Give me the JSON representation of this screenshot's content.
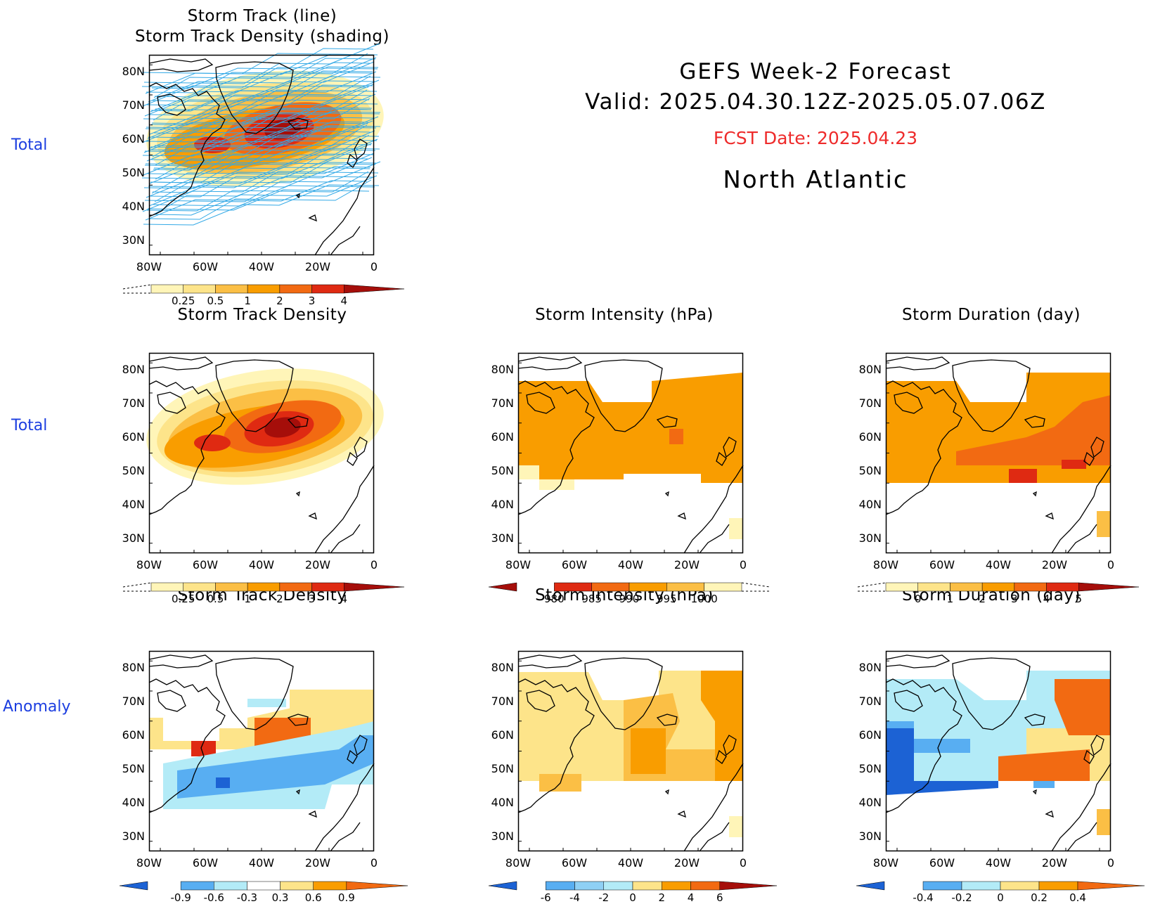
{
  "header": {
    "line1": "GEFS Week-2 Forecast",
    "line2": "Valid: 2025.04.30.12Z-2025.05.07.06Z",
    "fcst_date": "FCST Date: 2025.04.23",
    "region": "North Atlantic"
  },
  "row_labels": {
    "r1": "Total",
    "r2": "Total",
    "r3": "Anomaly"
  },
  "axes": {
    "lat_labels": [
      "80N",
      "70N",
      "60N",
      "50N",
      "40N",
      "30N"
    ],
    "lon_labels": [
      "80W",
      "60W",
      "40W",
      "20W",
      "0"
    ]
  },
  "panels": {
    "p1": {
      "title1": "Storm Track (line)",
      "title2": "Storm Track Density (shading)"
    },
    "p2": {
      "title": "Storm Track Density"
    },
    "p3": {
      "title": "Storm Intensity (hPa)"
    },
    "p4": {
      "title": "Storm Duration (day)"
    },
    "p5": {
      "title": "Storm Track Density"
    },
    "p6": {
      "title": "Storm Intensity (hPa)"
    },
    "p7": {
      "title": "Storm Duration (day)"
    }
  },
  "colorbars": {
    "density": [
      "0.25",
      "0.5",
      "1",
      "2",
      "3",
      "4"
    ],
    "intensity": [
      "980",
      "985",
      "990",
      "995",
      "1000"
    ],
    "duration": [
      "0",
      "1",
      "2",
      "3",
      "4",
      "5"
    ],
    "density_anom": [
      "-0.9",
      "-0.6",
      "-0.3",
      "0.3",
      "0.6",
      "0.9"
    ],
    "intensity_anom": [
      "-6",
      "-4",
      "-2",
      "0",
      "2",
      "4",
      "6"
    ],
    "duration_anom": [
      "-0.4",
      "-0.2",
      "0",
      "0.2",
      "0.4"
    ]
  },
  "colors": {
    "yellow_light": "#fff5b8",
    "yellow": "#fde48a",
    "orange_light": "#fbbf45",
    "orange": "#f99d00",
    "orange_red": "#f26a12",
    "red": "#df2a12",
    "dark_red": "#a50e0a",
    "blue_light": "#b3ebf7",
    "blue": "#58aef2",
    "blue_dark": "#1c62d4",
    "track_line": "#33a9e6",
    "label_blue": "#1c3ee0",
    "fcst_red": "#ee2b2b"
  }
}
